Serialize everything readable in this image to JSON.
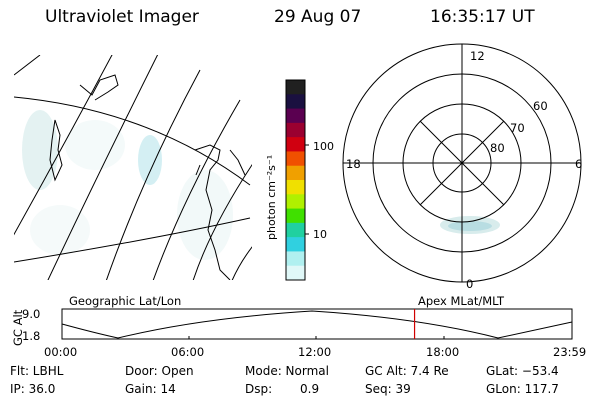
{
  "header": {
    "title": "Ultraviolet Imager",
    "date": "29 Aug 07",
    "time": "16:35:17 UT"
  },
  "colorbar": {
    "label": "photon cm⁻²s⁻¹",
    "ticks": [
      "100",
      "10"
    ],
    "colors": [
      "#202020",
      "#1a1040",
      "#5a0050",
      "#9a0030",
      "#d00010",
      "#f05000",
      "#f0a000",
      "#f0e000",
      "#b0f000",
      "#40e000",
      "#20d0a0",
      "#30d0e0",
      "#b0f0f0",
      "#e0f8f8"
    ]
  },
  "polar": {
    "labels": {
      "top": "12",
      "bottom": "0",
      "left": "18",
      "right": "6"
    },
    "rings": [
      "80",
      "70",
      "60"
    ]
  },
  "timeline": {
    "left_label": "Geographic Lat/Lon",
    "right_label": "Apex MLat/MLT",
    "axis_title": "GC Alt",
    "y_max": "9.0",
    "y_min": "1.8",
    "x_ticks": [
      "00:00",
      "06:00",
      "12:00",
      "18:00",
      "23:59"
    ],
    "current_time_fraction": 0.6913,
    "marker_color": "#d00000"
  },
  "info": {
    "flt": "Flt: LBHL",
    "door": "Door: Open",
    "mode": "Mode: Normal",
    "gcalt": "GC Alt: 7.4 Re",
    "glat": "GLat: −53.4",
    "ip": "IP: 36.0",
    "gain": "Gain: 14",
    "dsp_label": "Dsp:",
    "dsp_value": "0.9",
    "seq": "Seq: 39",
    "glon": "GLon: 117.7"
  }
}
